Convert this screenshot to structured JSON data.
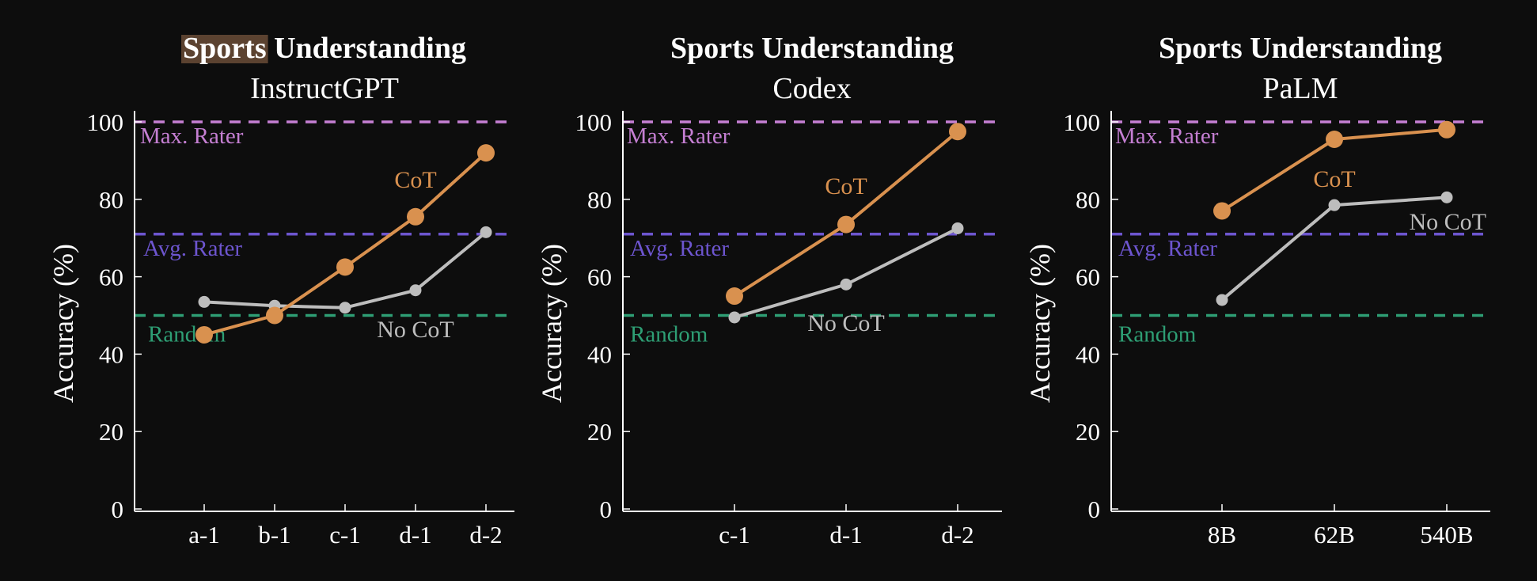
{
  "colors": {
    "background": "#0d0d0d",
    "axis": "#ffffff",
    "cot": "#d9914f",
    "nocot": "#bdbdbd",
    "max_rater": "#c57fd3",
    "avg_rater": "#6d55cf",
    "random": "#2e9e74",
    "title_highlight": "#5b4230"
  },
  "chart_data": [
    {
      "type": "line",
      "title": "Sports Understanding",
      "title_highlight_word": "Sports",
      "title_rest": " Understanding",
      "subtitle": "InstructGPT",
      "ylabel": "Accuracy (%)",
      "ylim": [
        0,
        100
      ],
      "yticks": [
        "0",
        "20",
        "40",
        "60",
        "80",
        "100"
      ],
      "categories": [
        "a-1",
        "b-1",
        "c-1",
        "d-1",
        "d-2"
      ],
      "series": [
        {
          "name": "CoT",
          "values": [
            45,
            50,
            62.5,
            75.5,
            92
          ]
        },
        {
          "name": "No CoT",
          "values": [
            53.5,
            52.5,
            52,
            56.5,
            71.5
          ]
        }
      ],
      "reference_lines": [
        {
          "name": "Max. Rater",
          "value": 100
        },
        {
          "name": "Avg. Rater",
          "value": 71
        },
        {
          "name": "Random",
          "value": 50
        }
      ]
    },
    {
      "type": "line",
      "title": "Sports Understanding",
      "subtitle": "Codex",
      "ylabel": "Accuracy (%)",
      "ylim": [
        0,
        100
      ],
      "yticks": [
        "0",
        "20",
        "40",
        "60",
        "80",
        "100"
      ],
      "categories": [
        "c-1",
        "d-1",
        "d-2"
      ],
      "series": [
        {
          "name": "CoT",
          "values": [
            55,
            73.5,
            97.5
          ]
        },
        {
          "name": "No CoT",
          "values": [
            49.5,
            58,
            72.5
          ]
        }
      ],
      "reference_lines": [
        {
          "name": "Max. Rater",
          "value": 100
        },
        {
          "name": "Avg. Rater",
          "value": 71
        },
        {
          "name": "Random",
          "value": 50
        }
      ]
    },
    {
      "type": "line",
      "title": "Sports Understanding",
      "subtitle": "PaLM",
      "ylabel": "Accuracy (%)",
      "ylim": [
        0,
        100
      ],
      "yticks": [
        "0",
        "20",
        "40",
        "60",
        "80",
        "100"
      ],
      "categories": [
        "8B",
        "62B",
        "540B"
      ],
      "series": [
        {
          "name": "CoT",
          "values": [
            77,
            95.5,
            98
          ]
        },
        {
          "name": "No CoT",
          "values": [
            54,
            78.5,
            80.5
          ]
        }
      ],
      "reference_lines": [
        {
          "name": "Max. Rater",
          "value": 100
        },
        {
          "name": "Avg. Rater",
          "value": 71
        },
        {
          "name": "Random",
          "value": 50
        }
      ]
    }
  ]
}
